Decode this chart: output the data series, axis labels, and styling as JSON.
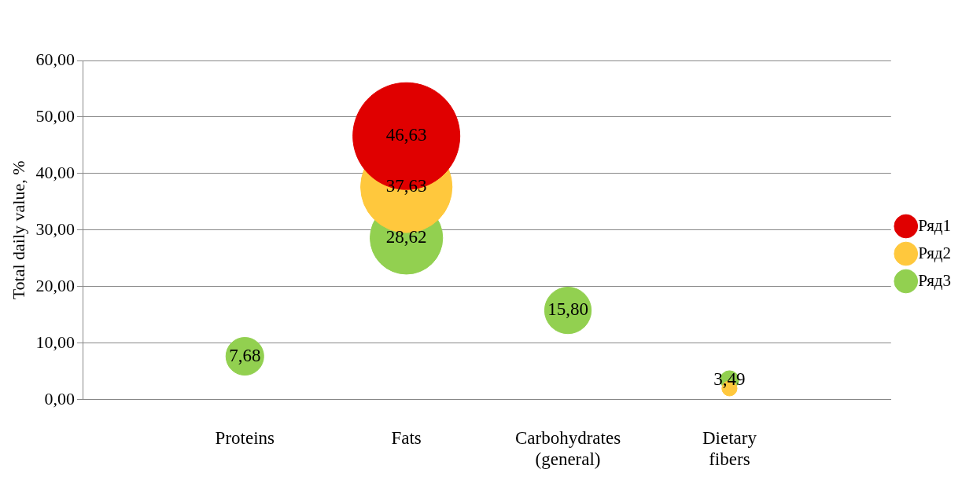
{
  "chart_data": {
    "type": "bubble",
    "ylabel": "Total daily value, %",
    "categories": [
      "Proteins",
      "Fats",
      "Carbohydrates (general)",
      "Dietary fibers"
    ],
    "series": [
      {
        "name": "Ряд1",
        "color": "#e00000",
        "values": [
          null,
          46.63,
          null,
          null
        ],
        "sizes": [
          null,
          1,
          null,
          null
        ],
        "value_labels": [
          null,
          "46,63",
          null,
          null
        ]
      },
      {
        "name": "Ряд2",
        "color": "#ffc83d",
        "values": [
          null,
          37.63,
          null,
          2
        ],
        "sizes": [
          null,
          0.73,
          null,
          0.02
        ],
        "value_labels": [
          null,
          "37,63",
          null,
          null
        ]
      },
      {
        "name": "Ряд3",
        "color": "#92d050",
        "values": [
          7.68,
          28.62,
          15.8,
          3.49
        ],
        "sizes": [
          0.125,
          0.46,
          0.19,
          0.03
        ],
        "value_labels": [
          "7,68",
          "28,62",
          "15,80",
          "3,49"
        ]
      }
    ],
    "ylim": [
      0,
      60
    ],
    "yticks": [
      {
        "value": 0,
        "label": "0,00"
      },
      {
        "value": 10,
        "label": "10,00"
      },
      {
        "value": 20,
        "label": "20,00"
      },
      {
        "value": 30,
        "label": "30,00"
      },
      {
        "value": 40,
        "label": "40,00"
      },
      {
        "value": 50,
        "label": "50,00"
      },
      {
        "value": 60,
        "label": "60,00"
      }
    ],
    "grid": "y",
    "legend": "right"
  }
}
